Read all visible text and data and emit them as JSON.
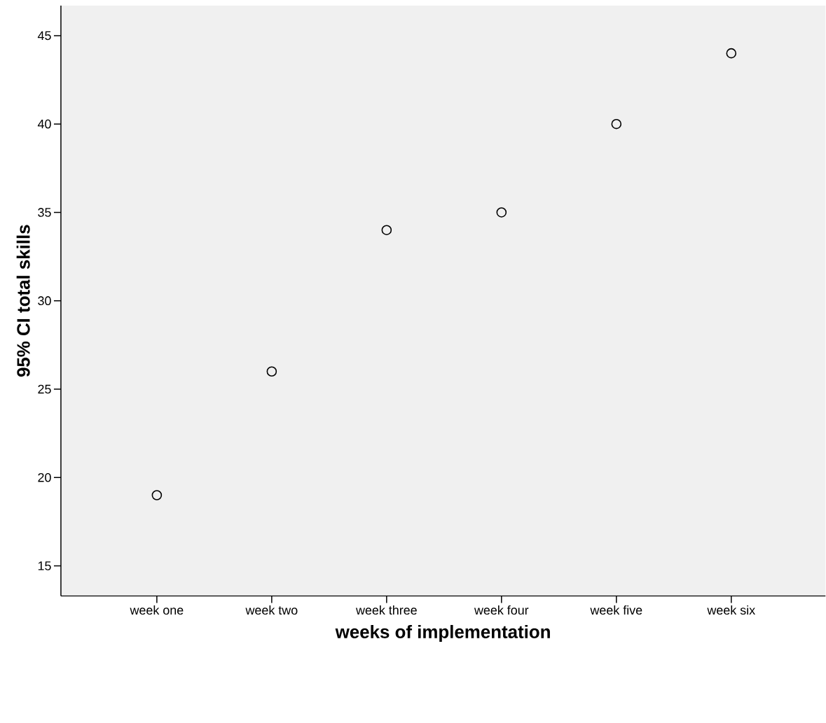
{
  "chart_data": {
    "type": "scatter",
    "xlabel": "weeks of implementation",
    "ylabel": "95% CI total skills",
    "categories": [
      "week one",
      "week two",
      "week three",
      "week four",
      "week five",
      "week six"
    ],
    "values": [
      19,
      26,
      34,
      35,
      40,
      44
    ],
    "color": "#000000",
    "marker": "circle",
    "ylim": [
      13.3,
      46.7
    ],
    "yticks": [
      15,
      20,
      25,
      30,
      35,
      40,
      45
    ],
    "grid": false
  }
}
